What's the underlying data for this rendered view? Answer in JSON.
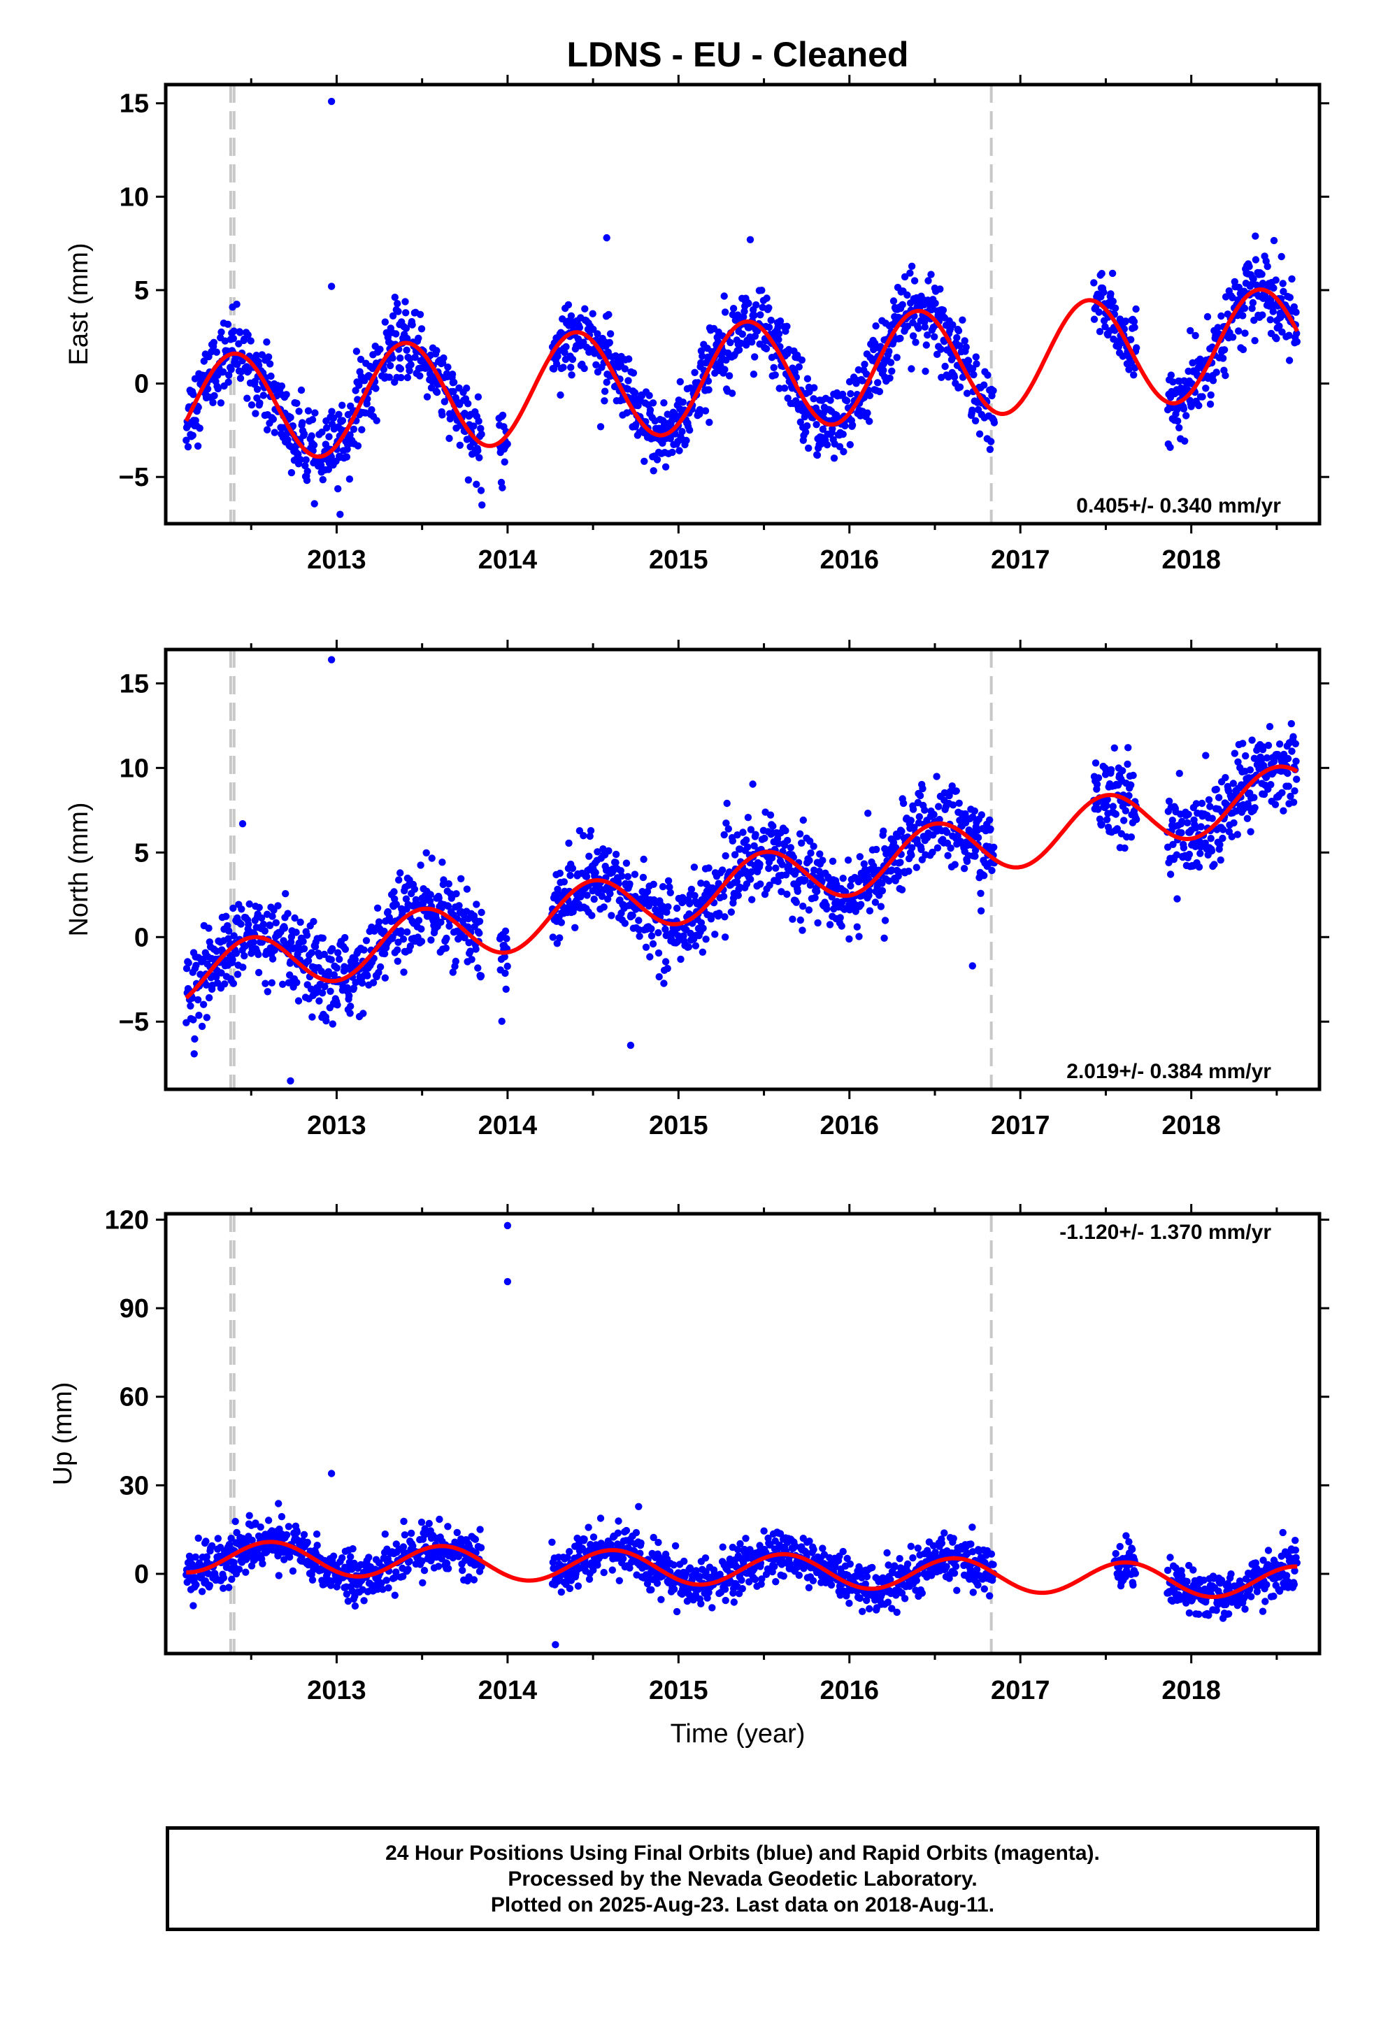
{
  "title": "LDNS  - EU - Cleaned",
  "xlabel": "Time (year)",
  "x_ticks": [
    "2013",
    "2014",
    "2015",
    "2016",
    "2017",
    "2018"
  ],
  "colors": {
    "points": "#0000ff",
    "fit": "#ff0000",
    "event_lines": "#c8c8c8"
  },
  "chart_data": [
    {
      "type": "scatter",
      "panel": "east",
      "ylabel": "East (mm)",
      "ylim": [
        -7.5,
        16
      ],
      "xlim": [
        2012.0,
        2018.75
      ],
      "y_ticks": [
        -5,
        0,
        5,
        10,
        15
      ],
      "rate_label": "0.405+/- 0.340 mm/yr",
      "event_lines_x": [
        2012.38,
        2012.4,
        2016.83
      ],
      "series": [
        {
          "kind": "fit-curve",
          "trend_mm_per_yr": 0.405,
          "offset": -0.5,
          "annual_amplitude": 2.9,
          "annual_peak_year": 2012.4,
          "y_start": -2,
          "y_end": 2.8
        },
        {
          "kind": "daily-positions",
          "segments": [
            [
              2012.12,
              2013.85
            ],
            [
              2013.95,
              2014.0
            ],
            [
              2014.26,
              2016.85
            ],
            [
              2017.43,
              2017.68
            ],
            [
              2017.86,
              2018.62
            ]
          ],
          "scatter_sd_mm": 1.0,
          "outliers": [
            {
              "x": 2012.97,
              "y": 15.1
            },
            {
              "x": 2012.97,
              "y": 5.2
            },
            {
              "x": 2014.58,
              "y": 7.8
            },
            {
              "x": 2015.42,
              "y": 7.7
            },
            {
              "x": 2013.85,
              "y": -6.5
            },
            {
              "x": 2013.02,
              "y": -7.0
            }
          ]
        }
      ]
    },
    {
      "type": "scatter",
      "panel": "north",
      "ylabel": "North (mm)",
      "ylim": [
        -9,
        17
      ],
      "xlim": [
        2012.0,
        2018.75
      ],
      "y_ticks": [
        -5,
        0,
        5,
        10,
        15
      ],
      "rate_label": "2.019+/- 0.384 mm/yr",
      "event_lines_x": [
        2012.38,
        2012.4,
        2016.83
      ],
      "series": [
        {
          "kind": "fit-curve",
          "trend_mm_per_yr": 2.019,
          "offset": -2.5,
          "annual_amplitude": 1.7,
          "annual_peak_year": 2012.5,
          "y_start": -3.6,
          "y_end": 9.8
        },
        {
          "kind": "daily-positions",
          "segments": [
            [
              2012.12,
              2013.85
            ],
            [
              2013.95,
              2014.0
            ],
            [
              2014.26,
              2016.85
            ],
            [
              2017.43,
              2017.68
            ],
            [
              2017.86,
              2018.62
            ]
          ],
          "scatter_sd_mm": 1.2,
          "outliers": [
            {
              "x": 2012.97,
              "y": 16.4
            },
            {
              "x": 2012.45,
              "y": 6.7
            },
            {
              "x": 2012.73,
              "y": -8.5
            },
            {
              "x": 2014.72,
              "y": -6.4
            },
            {
              "x": 2016.72,
              "y": -1.7
            },
            {
              "x": 2017.63,
              "y": 11.2
            }
          ]
        }
      ]
    },
    {
      "type": "scatter",
      "panel": "up",
      "ylabel": "Up (mm)",
      "ylim": [
        -27,
        122
      ],
      "xlim": [
        2012.0,
        2018.75
      ],
      "y_ticks": [
        0,
        30,
        60,
        90,
        120
      ],
      "rate_label": "-1.120+/- 1.370 mm/yr",
      "event_lines_x": [
        2012.38,
        2012.4,
        2016.83
      ],
      "series": [
        {
          "kind": "fit-curve",
          "trend_mm_per_yr": -1.12,
          "offset": 2.0,
          "annual_amplitude": 5.5,
          "annual_peak_year": 2012.62,
          "y_start": 0.5,
          "y_end": 2.5
        },
        {
          "kind": "daily-positions",
          "segments": [
            [
              2012.12,
              2013.85
            ],
            [
              2014.26,
              2016.85
            ],
            [
              2017.55,
              2017.68
            ],
            [
              2017.86,
              2018.62
            ]
          ],
          "scatter_sd_mm": 4.0,
          "outliers": [
            {
              "x": 2014.0,
              "y": 118
            },
            {
              "x": 2014.0,
              "y": 99
            },
            {
              "x": 2012.97,
              "y": 34
            },
            {
              "x": 2014.28,
              "y": -24
            }
          ]
        }
      ]
    }
  ],
  "footer": {
    "line1": "24 Hour Positions Using Final Orbits (blue) and Rapid Orbits (magenta).",
    "line2": "Processed by the Nevada Geodetic Laboratory.",
    "line3": "Plotted on 2025-Aug-23. Last data on 2018-Aug-11."
  }
}
